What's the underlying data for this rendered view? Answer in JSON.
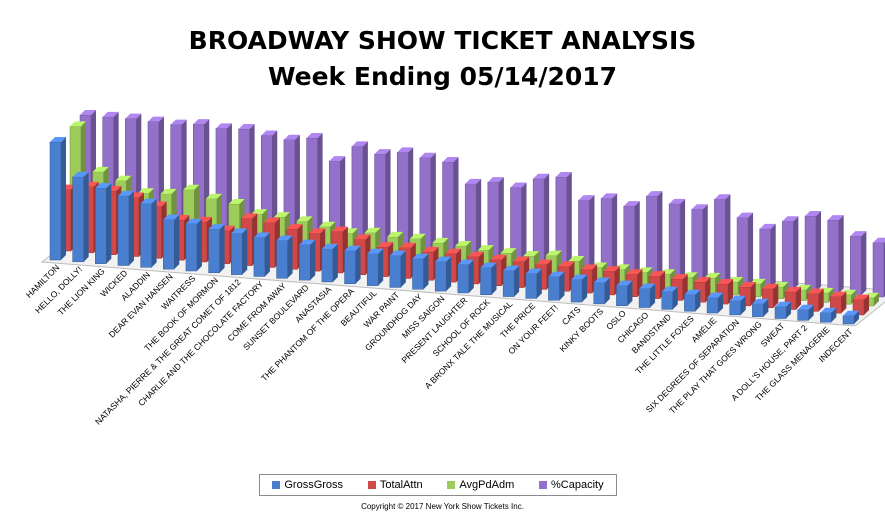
{
  "title": "BROADWAY SHOW TICKET ANALYSIS",
  "subtitle": "Week Ending 05/14/2017",
  "copyright": "Copyright © 2017 New York Show Tickets Inc.",
  "colors": {
    "GrossGross": "#4a7fd0",
    "TotalAttn": "#d04848",
    "AvgPdAdm": "#9dcc5a",
    "Capacity": "#9370c9"
  },
  "legend": [
    {
      "label": "GrossGross",
      "color": "#4a7fd0"
    },
    {
      "label": "TotalAttn",
      "color": "#d04848"
    },
    {
      "label": "AvgPdAdm",
      "color": "#9dcc5a"
    },
    {
      "label": "%Capacity",
      "color": "#9370c9"
    }
  ],
  "chart_data": {
    "type": "bar",
    "categories": [
      "HAMILTON",
      "HELLO, DOLLY!",
      "THE LION KING",
      "WICKED",
      "ALADDIN",
      "DEAR EVAN HANSEN",
      "WAITRESS",
      "THE BOOK OF MORMON",
      "NATASHA, PIERRE & THE GREAT COMET OF 1812",
      "CHARLIE AND THE CHOCOLATE FACTORY",
      "COME FROM AWAY",
      "SUNSET BOULEVARD",
      "ANASTASIA",
      "THE PHANTOM OF THE OPERA",
      "BEAUTIFUL",
      "WAR PAINT",
      "GROUNDHOG DAY",
      "MISS SAIGON",
      "PRESENT LAUGHTER",
      "SCHOOL OF ROCK",
      "A BRONX TALE THE MUSICAL",
      "THE PRICE",
      "ON YOUR FEET!",
      "CATS",
      "KINKY BOOTS",
      "OSLO",
      "CHICAGO",
      "BANDSTAND",
      "THE LITTLE FOXES",
      "AMÉLIE",
      "SIX DEGREES OF SEPARATION",
      "THE PLAY THAT GOES WRONG",
      "SWEAT",
      "A DOLL'S HOUSE, PART 2",
      "THE GLASS MENAGERIE",
      "INDECENT"
    ],
    "series": [
      {
        "name": "GrossGross",
        "values": [
          100,
          72,
          64,
          59,
          54,
          42,
          40,
          37,
          35,
          33,
          32,
          30,
          28,
          28,
          27,
          27,
          26,
          25,
          24,
          23,
          22,
          21,
          20,
          19,
          18,
          17,
          16,
          15,
          14,
          13,
          12,
          11,
          10,
          9,
          8,
          7
        ]
      },
      {
        "name": "TotalAttn",
        "values": [
          52,
          56,
          54,
          50,
          44,
          34,
          34,
          28,
          40,
          38,
          34,
          32,
          35,
          30,
          25,
          26,
          24,
          24,
          23,
          22,
          22,
          21,
          21,
          20,
          20,
          19,
          19,
          18,
          17,
          17,
          16,
          16,
          15,
          15,
          14,
          13
        ]
      },
      {
        "name": "AvgPdAdm",
        "values": [
          98,
          61,
          55,
          46,
          47,
          52,
          46,
          43,
          36,
          35,
          33,
          30,
          26,
          28,
          26,
          26,
          24,
          23,
          21,
          20,
          19,
          21,
          18,
          14,
          14,
          13,
          13,
          12,
          13,
          11,
          11,
          10,
          9,
          8,
          8,
          7
        ]
      },
      {
        "name": "%Capacity",
        "values": [
          100,
          100,
          100,
          99,
          98,
          100,
          98,
          99,
          95,
          93,
          96,
          78,
          92,
          87,
          90,
          87,
          85,
          68,
          71,
          68,
          77,
          80,
          62,
          65,
          60,
          70,
          65,
          62,
          72,
          58,
          50,
          58,
          64,
          62,
          50,
          46
        ]
      }
    ],
    "legend_position": "bottom",
    "grid": false
  }
}
